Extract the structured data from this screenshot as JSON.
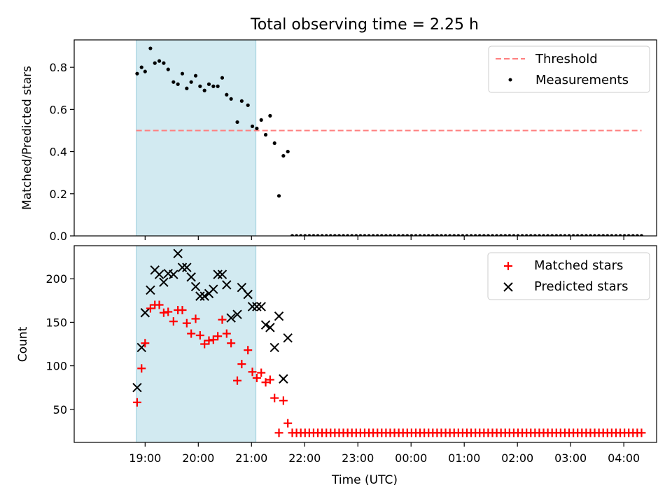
{
  "chart_data": [
    {
      "type": "scatter",
      "title": "Total observing time = 2.25 h",
      "ylabel": "Matched/Predicted stars",
      "xlabel": "",
      "ylim": [
        0,
        0.93
      ],
      "yticks": [
        "0.0",
        "0.2",
        "0.4",
        "0.6",
        "0.8"
      ],
      "ytick_values": [
        0,
        0.2,
        0.4,
        0.6,
        0.8
      ],
      "legend_position": "upper-right",
      "threshold": {
        "name": "Threshold",
        "y": 0.5,
        "color": "#ff7f7f",
        "style": "dashed"
      },
      "shaded_region": {
        "x_start": "18:50",
        "x_end": "21:05",
        "color": "#add8e6"
      },
      "series": [
        {
          "name": "Measurements",
          "color": "#000000",
          "marker": "dot",
          "x": [
            "18:51",
            "18:56",
            "19:00",
            "19:06",
            "19:11",
            "19:16",
            "19:21",
            "19:26",
            "19:32",
            "19:37",
            "19:42",
            "19:47",
            "19:52",
            "19:57",
            "20:02",
            "20:07",
            "20:12",
            "20:17",
            "20:22",
            "20:27",
            "20:32",
            "20:37",
            "20:44",
            "20:49",
            "20:56",
            "21:01",
            "21:06",
            "21:11",
            "21:16",
            "21:21",
            "21:26",
            "21:31",
            "21:36",
            "21:41"
          ],
          "y": [
            0.77,
            0.8,
            0.78,
            0.89,
            0.82,
            0.83,
            0.82,
            0.79,
            0.73,
            0.72,
            0.77,
            0.7,
            0.73,
            0.76,
            0.71,
            0.69,
            0.72,
            0.71,
            0.71,
            0.75,
            0.67,
            0.65,
            0.54,
            0.64,
            0.62,
            0.52,
            0.51,
            0.55,
            0.48,
            0.57,
            0.44,
            0.19,
            0.38,
            0.4
          ]
        }
      ],
      "zero_series": {
        "start": "21:46",
        "end": "04:20",
        "y": 0
      }
    },
    {
      "type": "scatter",
      "title": "",
      "ylabel": "Count",
      "xlabel": "Time (UTC)",
      "ylim": [
        12,
        238
      ],
      "yticks": [
        "50",
        "100",
        "150",
        "200"
      ],
      "ytick_values": [
        50,
        100,
        150,
        200
      ],
      "xticks": [
        "19:00",
        "20:00",
        "21:00",
        "22:00",
        "23:00",
        "00:00",
        "01:00",
        "02:00",
        "03:00",
        "04:00"
      ],
      "legend_position": "upper-right",
      "shaded_region": {
        "x_start": "18:50",
        "x_end": "21:05",
        "color": "#add8e6"
      },
      "series": [
        {
          "name": "Matched stars",
          "color": "#ff0000",
          "marker": "plus",
          "x": [
            "18:51",
            "18:56",
            "19:00",
            "19:06",
            "19:11",
            "19:16",
            "19:21",
            "19:26",
            "19:32",
            "19:37",
            "19:42",
            "19:47",
            "19:52",
            "19:57",
            "20:02",
            "20:07",
            "20:12",
            "20:17",
            "20:22",
            "20:27",
            "20:32",
            "20:37",
            "20:44",
            "20:49",
            "20:56",
            "21:01",
            "21:06",
            "21:11",
            "21:16",
            "21:21",
            "21:26",
            "21:31",
            "21:36",
            "21:41"
          ],
          "y": [
            58,
            97,
            126,
            166,
            170,
            170,
            161,
            162,
            151,
            164,
            164,
            149,
            137,
            154,
            135,
            125,
            129,
            130,
            134,
            153,
            137,
            126,
            83,
            102,
            118,
            93,
            86,
            92,
            81,
            84,
            63,
            23,
            60,
            34
          ]
        },
        {
          "name": "Predicted stars",
          "color": "#000000",
          "marker": "x",
          "x": [
            "18:51",
            "18:56",
            "19:00",
            "19:06",
            "19:11",
            "19:16",
            "19:21",
            "19:26",
            "19:32",
            "19:37",
            "19:42",
            "19:47",
            "19:52",
            "19:57",
            "20:02",
            "20:07",
            "20:12",
            "20:17",
            "20:22",
            "20:27",
            "20:32",
            "20:37",
            "20:44",
            "20:49",
            "20:56",
            "21:01",
            "21:06",
            "21:11",
            "21:16",
            "21:21",
            "21:26",
            "21:31",
            "21:36",
            "21:41"
          ],
          "y": [
            75,
            121,
            161,
            187,
            210,
            205,
            196,
            206,
            205,
            229,
            213,
            213,
            202,
            191,
            180,
            180,
            183,
            188,
            205,
            205,
            193,
            155,
            159,
            190,
            182,
            168,
            168,
            168,
            147,
            144,
            121,
            157,
            85,
            132
          ]
        }
      ],
      "zero_series": {
        "name": "Matched stars",
        "start": "21:46",
        "end": "04:20",
        "y": 23
      }
    }
  ]
}
